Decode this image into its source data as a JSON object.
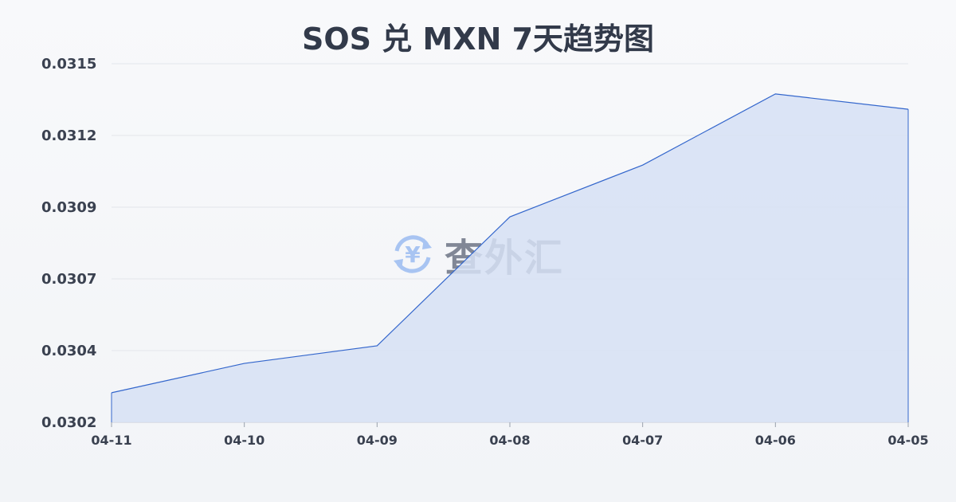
{
  "chart_data": {
    "type": "area",
    "title": "SOS 兑 MXN 7天趋势图",
    "xlabel": "",
    "ylabel": "",
    "categories": [
      "04-11",
      "04-10",
      "04-09",
      "04-08",
      "04-07",
      "04-06",
      "04-05"
    ],
    "series": [
      {
        "values": [
          0.030294,
          0.030397,
          0.030459,
          0.030912,
          0.031094,
          0.031344,
          0.03129
        ]
      }
    ],
    "ylim": [
      0.03019,
      0.03145
    ],
    "yticks": [
      0.03019,
      0.030442,
      0.030694,
      0.030946,
      0.031198,
      0.03145
    ],
    "ytick_labels": [
      "0.0302",
      "0.0304",
      "0.0307",
      "0.0309",
      "0.0312",
      "0.0315"
    ],
    "grid": true,
    "line_color": "#3366cc",
    "fill_color": "#d6e1f5"
  },
  "watermark": {
    "text": "查外汇",
    "icon": "yen-exchange-icon",
    "icon_color": "#8fb4f0"
  }
}
